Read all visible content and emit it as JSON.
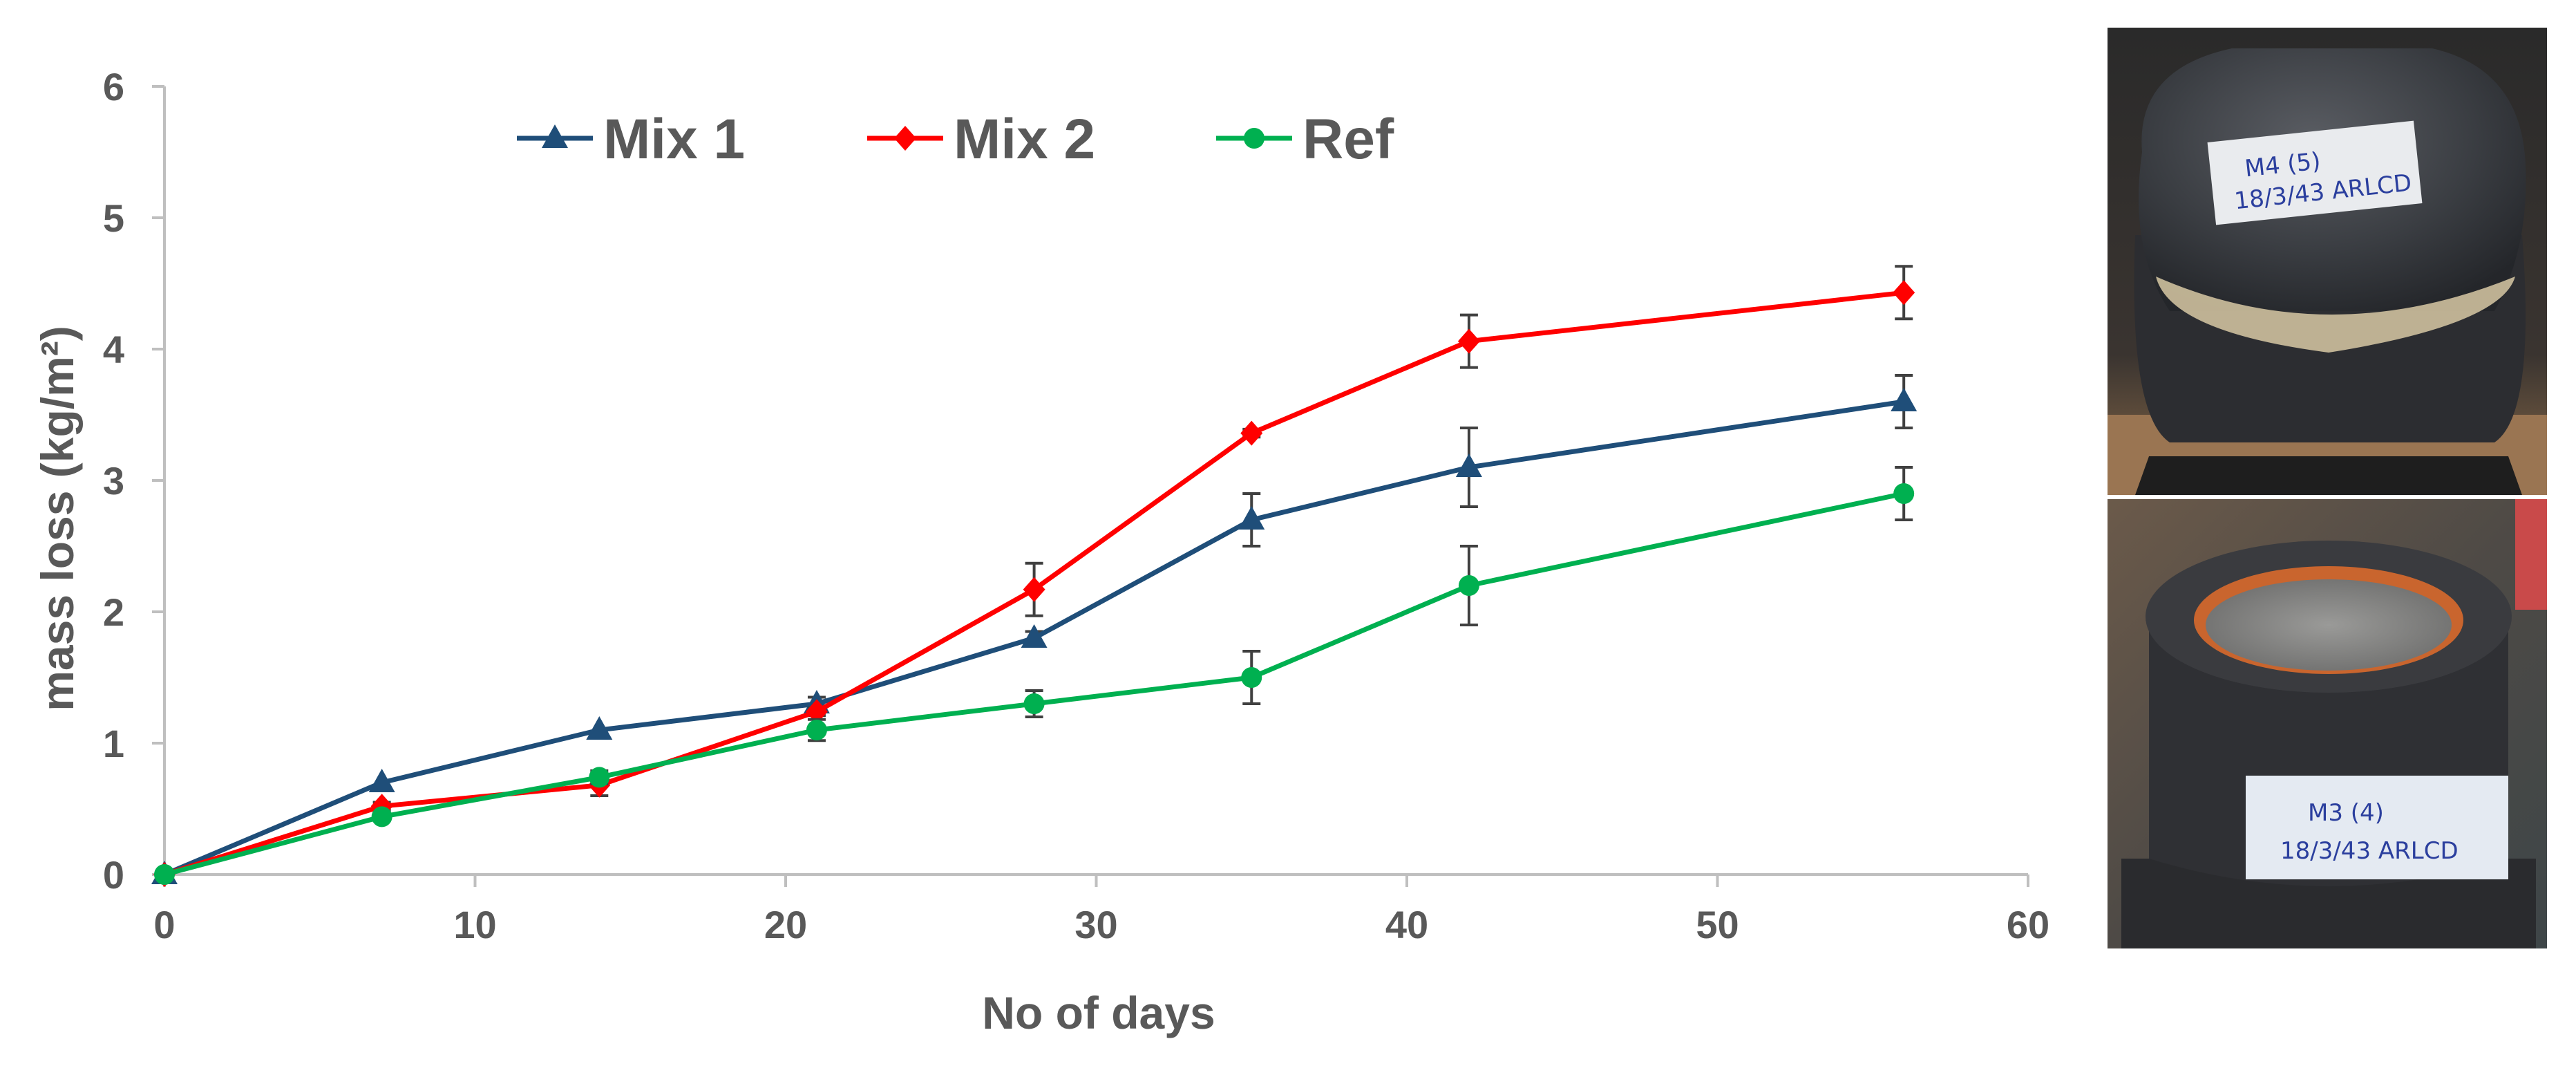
{
  "chart_data": {
    "type": "line",
    "x": [
      0,
      7,
      14,
      21,
      28,
      35,
      42,
      56
    ],
    "series": [
      {
        "name": "Mix 1",
        "color": "#1f4e79",
        "marker": "triangle",
        "values": [
          0,
          0.7,
          1.1,
          1.3,
          1.8,
          2.7,
          3.1,
          3.6
        ],
        "errors": [
          0,
          0,
          0,
          0.05,
          0.05,
          0.2,
          0.3,
          0.2
        ]
      },
      {
        "name": "Mix 2",
        "color": "#ff0000",
        "marker": "diamond",
        "values": [
          0,
          0.52,
          0.68,
          1.24,
          2.17,
          3.36,
          4.06,
          4.43
        ],
        "errors": [
          0,
          0.03,
          0.08,
          0.03,
          0.2,
          0.03,
          0.2,
          0.2
        ]
      },
      {
        "name": "Ref",
        "color": "#00b050",
        "marker": "circle",
        "values": [
          0,
          0.44,
          0.74,
          1.1,
          1.3,
          1.5,
          2.2,
          2.9
        ],
        "errors": [
          0,
          0.03,
          0.05,
          0.08,
          0.1,
          0.2,
          0.3,
          0.2
        ]
      }
    ],
    "xlabel": "No of days",
    "ylabel": "mass loss (kg/m²)",
    "xlim": [
      0,
      60
    ],
    "ylim": [
      0,
      6
    ],
    "xticks": [
      0,
      10,
      20,
      30,
      40,
      50,
      60
    ],
    "yticks": [
      0,
      1,
      2,
      3,
      4,
      5,
      6
    ],
    "legend_position": "top",
    "grid": false
  },
  "photos": {
    "top_label_1": "M4 (5)",
    "top_label_2": "18/3/43 ARLCD",
    "bottom_label_1": "M3 (4)",
    "bottom_label_2": "18/3/43 ARLCD"
  }
}
